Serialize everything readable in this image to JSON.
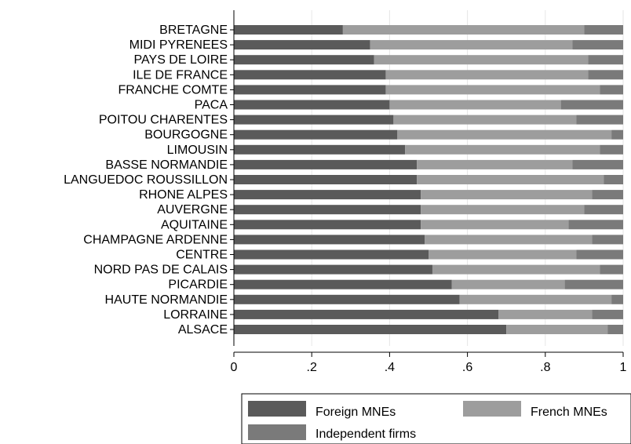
{
  "chart_data": {
    "type": "bar",
    "orientation": "horizontal",
    "stacked": true,
    "categories": [
      "BRETAGNE",
      "MIDI PYRENEES",
      "PAYS DE LOIRE",
      "ILE DE FRANCE",
      "FRANCHE COMTE",
      "PACA",
      "POITOU CHARENTES",
      "BOURGOGNE",
      "LIMOUSIN",
      "BASSE NORMANDIE",
      "LANGUEDOC ROUSSILLON",
      "RHONE ALPES",
      "AUVERGNE",
      "AQUITAINE",
      "CHAMPAGNE ARDENNE",
      "CENTRE",
      "NORD PAS DE CALAIS",
      "PICARDIE",
      "HAUTE NORMANDIE",
      "LORRAINE",
      "ALSACE"
    ],
    "series": [
      {
        "name": "Foreign MNEs",
        "color": "#5a5a5a",
        "values": [
          0.28,
          0.35,
          0.36,
          0.39,
          0.39,
          0.4,
          0.41,
          0.42,
          0.44,
          0.47,
          0.47,
          0.48,
          0.48,
          0.48,
          0.49,
          0.5,
          0.51,
          0.56,
          0.58,
          0.68,
          0.7
        ]
      },
      {
        "name": "French MNEs",
        "color": "#9d9d9d",
        "values": [
          0.62,
          0.52,
          0.55,
          0.52,
          0.55,
          0.44,
          0.47,
          0.55,
          0.5,
          0.4,
          0.48,
          0.44,
          0.42,
          0.38,
          0.43,
          0.38,
          0.43,
          0.29,
          0.39,
          0.24,
          0.26
        ]
      },
      {
        "name": "Independent firms",
        "color": "#7a7a7a",
        "values": [
          0.1,
          0.13,
          0.09,
          0.09,
          0.06,
          0.16,
          0.12,
          0.03,
          0.06,
          0.13,
          0.05,
          0.08,
          0.1,
          0.14,
          0.08,
          0.12,
          0.06,
          0.15,
          0.03,
          0.08,
          0.04
        ]
      }
    ],
    "xlim": [
      0,
      1
    ],
    "xticks": [
      0,
      0.2,
      0.4,
      0.6,
      0.8,
      1
    ],
    "xtick_labels": [
      "0",
      ".2",
      ".4",
      ".6",
      ".8",
      "1"
    ],
    "grid": true,
    "legend_position": "bottom"
  }
}
